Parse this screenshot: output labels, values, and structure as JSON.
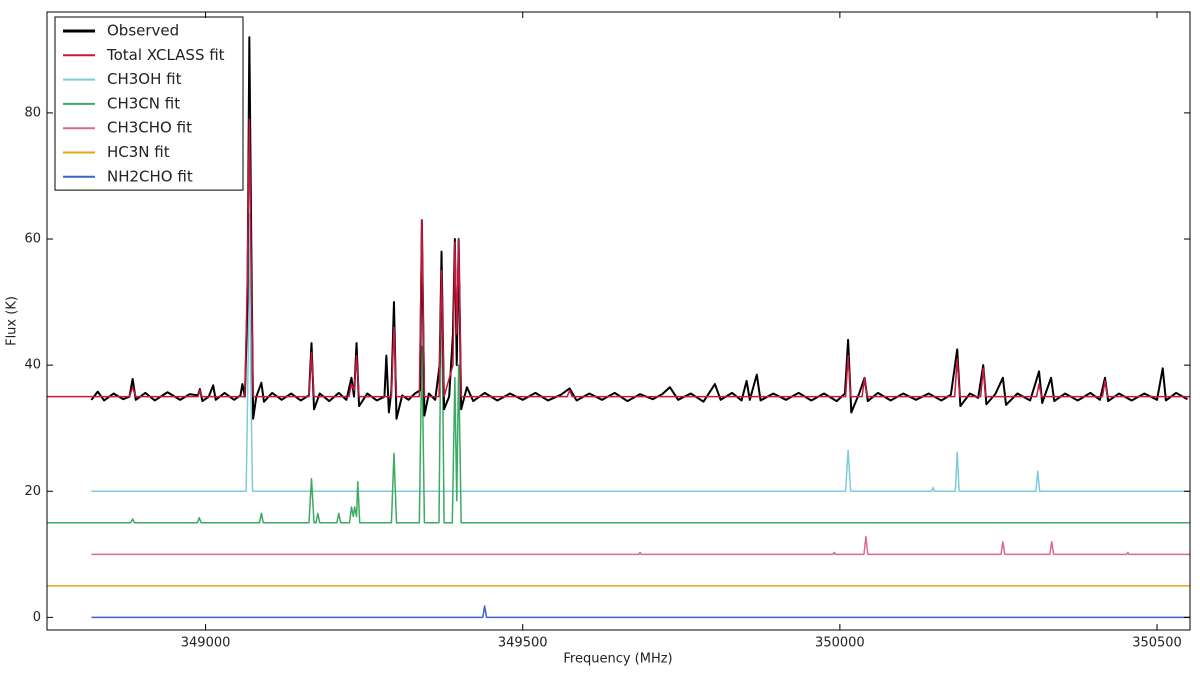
{
  "chart_data": {
    "type": "line",
    "xlabel": "Frequency (MHz)",
    "ylabel": "Flux (K)",
    "xlim": [
      348750,
      350552
    ],
    "ylim": [
      -2,
      96
    ],
    "xticks": [
      349000,
      349500,
      350000,
      350500
    ],
    "yticks": [
      0,
      20,
      40,
      60,
      80
    ],
    "legend": "upper left",
    "series": [
      {
        "name": "Observed",
        "color": "#000000",
        "x": [
          348820,
          348830,
          348840,
          348855,
          348870,
          348880,
          348885,
          348890,
          348905,
          348920,
          348940,
          348960,
          348975,
          348988,
          348991,
          348995,
          349005,
          349012,
          349016,
          349030,
          349045,
          349055,
          349058,
          349062,
          349066,
          349069,
          349072,
          349075,
          349080,
          349088,
          349092,
          349105,
          349120,
          349135,
          349150,
          349163,
          349167,
          349171,
          349180,
          349195,
          349210,
          349222,
          349230,
          349234,
          349238,
          349242,
          349255,
          349270,
          349282,
          349285,
          349289,
          349293,
          349297,
          349301,
          349310,
          349320,
          349330,
          349338,
          349341,
          349345,
          349352,
          349362,
          349369,
          349372,
          349376,
          349384,
          349390,
          349393,
          349396,
          349399,
          349403,
          349412,
          349422,
          349440,
          349460,
          349480,
          349500,
          349520,
          349540,
          349560,
          349574,
          349585,
          349605,
          349625,
          349645,
          349665,
          349685,
          349705,
          349720,
          349732,
          349745,
          349765,
          349785,
          349803,
          349812,
          349830,
          349845,
          349853,
          349858,
          349869,
          349875,
          349895,
          349915,
          349935,
          349955,
          349975,
          349995,
          350008,
          350013,
          350018,
          350030,
          350039,
          350044,
          350060,
          350080,
          350100,
          350120,
          350140,
          350160,
          350175,
          350185,
          350190,
          350205,
          350218,
          350226,
          350231,
          350245,
          350257,
          350262,
          350280,
          350300,
          350314,
          350319,
          350333,
          350338,
          350355,
          350375,
          350395,
          350410,
          350418,
          350423,
          350440,
          350460,
          350480,
          350500,
          350509,
          350514,
          350530,
          350548
        ],
        "values": [
          34.5,
          35.8,
          34.4,
          35.5,
          34.6,
          35,
          37.8,
          34.5,
          35.6,
          34.4,
          35.7,
          34.5,
          35.4,
          35.2,
          36.2,
          34.3,
          35,
          36.8,
          34.5,
          35.6,
          34.5,
          35.2,
          37,
          35,
          50,
          92,
          60,
          31.5,
          35,
          37.2,
          34.2,
          35.6,
          34.5,
          35.5,
          34.4,
          35.2,
          43.5,
          33,
          35.5,
          34.3,
          35.6,
          34.5,
          38,
          35,
          43.5,
          33.5,
          35.5,
          34.4,
          35,
          41.5,
          32.5,
          36,
          50,
          31.5,
          35.2,
          34.5,
          35.5,
          36,
          63,
          32,
          35.5,
          34.5,
          40,
          58,
          33,
          35,
          45,
          60,
          40,
          60,
          33,
          36.5,
          34.3,
          35.6,
          34.4,
          35.5,
          34.5,
          35.6,
          34.4,
          35.3,
          36.3,
          34.4,
          35.5,
          34.5,
          35.6,
          34.3,
          35.4,
          34.6,
          35.4,
          36.5,
          34.5,
          35.5,
          34.2,
          37,
          34.5,
          35.6,
          34.4,
          37.5,
          34.5,
          38.5,
          34.4,
          35.5,
          34.5,
          35.6,
          34.4,
          35.5,
          34.3,
          35.5,
          44,
          32.5,
          35.4,
          38,
          34.3,
          35.6,
          34.4,
          35.5,
          34.5,
          35.5,
          34.4,
          35.3,
          42.5,
          33.5,
          35.5,
          34.8,
          40,
          33.8,
          35.4,
          38,
          33.7,
          35.5,
          34.4,
          39,
          34,
          38,
          34.3,
          35.5,
          34.4,
          35.6,
          34.5,
          38,
          34.3,
          35.5,
          34.4,
          35.5,
          34.5,
          39.5,
          34.4,
          35.6,
          34.6
        ]
      },
      {
        "name": "Total XCLASS fit",
        "color": "#c8173c",
        "x": [
          348750,
          348880,
          348885,
          348890,
          348988,
          348991,
          348994,
          349062,
          349066,
          349069,
          349072,
          349075,
          349163,
          349167,
          349171,
          349226,
          349230,
          349234,
          349238,
          349242,
          349293,
          349297,
          349301,
          349337,
          349341,
          349345,
          349368,
          349372,
          349376,
          349390,
          349393,
          349396,
          349399,
          349403,
          349570,
          349574,
          349578,
          350009,
          350013,
          350017,
          350035,
          350039,
          350043,
          350181,
          350185,
          350189,
          350222,
          350226,
          350230,
          350310,
          350314,
          350318,
          350414,
          350418,
          350422,
          350552
        ],
        "values": [
          35,
          35,
          36.5,
          35,
          35,
          36,
          35,
          35,
          55,
          79,
          55,
          35,
          35,
          42,
          35,
          35,
          37,
          36,
          41.5,
          35,
          35,
          46,
          35,
          35,
          63,
          35,
          35,
          55,
          35,
          40,
          59.5,
          45,
          60,
          35,
          35,
          36,
          35,
          35,
          41.5,
          35,
          35,
          38,
          35,
          35,
          41,
          35,
          35,
          39.5,
          35,
          35,
          37,
          35,
          35,
          37.5,
          35,
          35
        ]
      },
      {
        "name": "CH3OH fit",
        "color": "#7ecbdc",
        "x": [
          348820,
          349064,
          349067,
          349069,
          349071,
          349074,
          350009,
          350013,
          350017,
          350145,
          350147,
          350149,
          350182,
          350185,
          350188,
          350309,
          350312,
          350315,
          350552
        ],
        "values": [
          20,
          20,
          40,
          64,
          40,
          20,
          20,
          26.5,
          20,
          20,
          20.6,
          20,
          20,
          26.2,
          20,
          20,
          23.2,
          20,
          20
        ]
      },
      {
        "name": "CH3CN fit",
        "color": "#3aaa64",
        "x": [
          348750,
          348882,
          348885,
          348888,
          348987,
          348990,
          348993,
          349085,
          349088,
          349091,
          349163,
          349167,
          349171,
          349174,
          349177,
          349180,
          349207,
          349210,
          349213,
          349227,
          349230,
          349233,
          349235,
          349238,
          349240,
          349243,
          349293,
          349297,
          349301,
          349337,
          349341,
          349345,
          349368,
          349372,
          349376,
          349389,
          349393,
          349396,
          349399,
          349403,
          350552
        ],
        "values": [
          15,
          15,
          15.6,
          15,
          15,
          15.8,
          15,
          15,
          16.5,
          15,
          15,
          22,
          15,
          15,
          16.5,
          15,
          15,
          16.5,
          15,
          15,
          17.5,
          16,
          17.5,
          16,
          21.5,
          15,
          15,
          26,
          15,
          15,
          43,
          15,
          15,
          56,
          15,
          15,
          38,
          18.5,
          40,
          15,
          15
        ]
      },
      {
        "name": "CH3CHO fit",
        "color": "#d96a8a",
        "x": [
          348820,
          349683,
          349685,
          349687,
          349989,
          349991,
          349993,
          350038,
          350041,
          350044,
          350254,
          350257,
          350260,
          350331,
          350334,
          350337,
          350452,
          350454,
          350456,
          350552
        ],
        "values": [
          10,
          10,
          10.3,
          10,
          10,
          10.3,
          10,
          10,
          12.8,
          10,
          10,
          12,
          10,
          10,
          12,
          10,
          10,
          10.3,
          10,
          10
        ]
      },
      {
        "name": "HC3N fit",
        "color": "#e8a317",
        "x": [
          348750,
          350552
        ],
        "values": [
          5,
          5
        ]
      },
      {
        "name": "NH2CHO fit",
        "color": "#3c64c8",
        "x": [
          348820,
          349437,
          349440,
          349443,
          350552
        ],
        "values": [
          0,
          0,
          1.8,
          0,
          0
        ]
      }
    ]
  }
}
